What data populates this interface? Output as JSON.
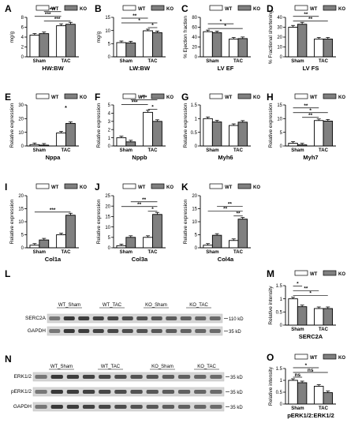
{
  "legend_labels": [
    "WT",
    "KO"
  ],
  "colors": {
    "wt": "#ffffff",
    "ko": "#808080",
    "stroke": "#000000"
  },
  "chart_data": [
    {
      "id": "A",
      "type": "bar",
      "categories": [
        "Sham",
        "TAC"
      ],
      "ylabel": "mg/g",
      "xlabel": "HW:BW",
      "yticks": [
        0,
        2,
        4,
        6,
        8
      ],
      "ylim": [
        0,
        8
      ],
      "series": [
        {
          "name": "WT",
          "values": [
            4.4,
            6.3
          ]
        },
        {
          "name": "KO",
          "values": [
            4.7,
            6.6
          ]
        }
      ],
      "annotations": [
        "***",
        "***",
        "***"
      ]
    },
    {
      "id": "B",
      "type": "bar",
      "categories": [
        "Sham",
        "TAC"
      ],
      "ylabel": "mg/g",
      "xlabel": "LW:BW",
      "yticks": [
        0,
        5,
        10,
        15
      ],
      "ylim": [
        0,
        15
      ],
      "series": [
        {
          "name": "WT",
          "values": [
            5.4,
            9.9
          ]
        },
        {
          "name": "KO",
          "values": [
            5.3,
            9.2
          ]
        }
      ],
      "annotations": [
        "*",
        "*",
        "**"
      ]
    },
    {
      "id": "C",
      "type": "bar",
      "categories": [
        "Sham",
        "TAC"
      ],
      "ylabel": "% Ejection fraction",
      "xlabel": "LV EF",
      "yticks": [
        0,
        20,
        40,
        60,
        80
      ],
      "ylim": [
        0,
        80
      ],
      "series": [
        {
          "name": "WT",
          "values": [
            51,
            36
          ]
        },
        {
          "name": "KO",
          "values": [
            49,
            37
          ]
        }
      ],
      "annotations": [
        "*",
        "*"
      ]
    },
    {
      "id": "D",
      "type": "bar",
      "categories": [
        "Sham",
        "TAC"
      ],
      "ylabel": "% Fractional shortening",
      "xlabel": "LV FS",
      "yticks": [
        0,
        10,
        20,
        30,
        40
      ],
      "ylim": [
        0,
        40
      ],
      "series": [
        {
          "name": "WT",
          "values": [
            30,
            18
          ]
        },
        {
          "name": "KO",
          "values": [
            33,
            18
          ]
        }
      ],
      "annotations": [
        "**",
        "**"
      ]
    },
    {
      "id": "E",
      "type": "bar",
      "categories": [
        "Sham",
        "TAC"
      ],
      "ylabel": "Relative expression",
      "xlabel": "Nppa",
      "yticks": [
        0,
        10,
        20,
        30
      ],
      "ylim": [
        0,
        30
      ],
      "series": [
        {
          "name": "WT",
          "values": [
            1.0,
            9.5
          ]
        },
        {
          "name": "KO",
          "values": [
            0.6,
            16.5
          ]
        }
      ],
      "annotations": [
        "*"
      ]
    },
    {
      "id": "F",
      "type": "bar",
      "categories": [
        "Sham",
        "TAC"
      ],
      "ylabel": "Relative expression",
      "xlabel": "Nppb",
      "yticks": [
        0,
        1,
        2,
        3,
        4,
        5
      ],
      "ylim": [
        0,
        5
      ],
      "series": [
        {
          "name": "WT",
          "values": [
            1.0,
            4.1
          ]
        },
        {
          "name": "KO",
          "values": [
            0.5,
            3.0
          ]
        }
      ],
      "annotations": [
        "*",
        "***",
        "***"
      ]
    },
    {
      "id": "G",
      "type": "bar",
      "categories": [
        "Sham",
        "TAC"
      ],
      "ylabel": "Relative expression",
      "xlabel": "Myh6",
      "yticks": [
        0.0,
        0.5,
        1.0,
        1.5
      ],
      "ylim": [
        0,
        1.5
      ],
      "series": [
        {
          "name": "WT",
          "values": [
            1.0,
            0.75
          ]
        },
        {
          "name": "KO",
          "values": [
            0.88,
            0.87
          ]
        }
      ],
      "annotations": []
    },
    {
      "id": "H",
      "type": "bar",
      "categories": [
        "Sham",
        "TAC"
      ],
      "ylabel": "Relative expression",
      "xlabel": "Myh7",
      "yticks": [
        0,
        5,
        10,
        15
      ],
      "ylim": [
        0,
        15
      ],
      "series": [
        {
          "name": "WT",
          "values": [
            1.0,
            9.3
          ]
        },
        {
          "name": "KO",
          "values": [
            0.4,
            9.1
          ]
        }
      ],
      "annotations": [
        "**",
        "*",
        "**"
      ]
    },
    {
      "id": "I",
      "type": "bar",
      "categories": [
        "Sham",
        "TAC"
      ],
      "ylabel": "Relative expression",
      "xlabel": "Col1a",
      "yticks": [
        0,
        5,
        10,
        15,
        20
      ],
      "ylim": [
        0,
        20
      ],
      "series": [
        {
          "name": "WT",
          "values": [
            1.0,
            5.0
          ]
        },
        {
          "name": "KO",
          "values": [
            3.0,
            12.5
          ]
        }
      ],
      "annotations": [
        "***"
      ]
    },
    {
      "id": "J",
      "type": "bar",
      "categories": [
        "Sham",
        "TAC"
      ],
      "ylabel": "Relative expression",
      "xlabel": "Col3a",
      "yticks": [
        0,
        5,
        10,
        15,
        20,
        25
      ],
      "ylim": [
        0,
        25
      ],
      "series": [
        {
          "name": "WT",
          "values": [
            1.0,
            5.0
          ]
        },
        {
          "name": "KO",
          "values": [
            5.0,
            16.0
          ]
        }
      ],
      "annotations": [
        "*",
        "**",
        "**"
      ]
    },
    {
      "id": "K",
      "type": "bar",
      "categories": [
        "Sham",
        "TAC"
      ],
      "ylabel": "Relative expression",
      "xlabel": "Col4a",
      "yticks": [
        0,
        5,
        10,
        15,
        20
      ],
      "ylim": [
        0,
        20
      ],
      "series": [
        {
          "name": "WT",
          "values": [
            1.0,
            2.8
          ]
        },
        {
          "name": "KO",
          "values": [
            4.8,
            11.0
          ]
        }
      ],
      "annotations": [
        "**",
        "**",
        "**"
      ]
    },
    {
      "id": "M",
      "type": "bar",
      "categories": [
        "Sham",
        "TAC"
      ],
      "ylabel": "Relative intensity",
      "xlabel": "SERC2A",
      "yticks": [
        0.0,
        0.5,
        1.0,
        1.5
      ],
      "ylim": [
        0,
        1.5
      ],
      "series": [
        {
          "name": "WT",
          "values": [
            1.0,
            0.63
          ]
        },
        {
          "name": "KO",
          "values": [
            0.7,
            0.63
          ]
        }
      ],
      "annotations": [
        "*",
        "**",
        "*"
      ]
    },
    {
      "id": "O",
      "type": "bar",
      "categories": [
        "Sham",
        "TAC"
      ],
      "ylabel": "Relative intensity",
      "xlabel": "pERK1/2:ERK1/2",
      "yticks": [
        0.0,
        0.5,
        1.0,
        1.5
      ],
      "ylim": [
        0,
        1.5
      ],
      "series": [
        {
          "name": "WT",
          "values": [
            1.0,
            0.75
          ]
        },
        {
          "name": "KO",
          "values": [
            0.9,
            0.48
          ]
        }
      ],
      "annotations": [
        "ns",
        "ns",
        "*"
      ]
    }
  ],
  "blots": [
    {
      "id": "L",
      "groups": [
        "WT_Sham",
        "WT_TAC",
        "KO_Sham",
        "KO_TAC"
      ],
      "rows": [
        {
          "name": "SERC2A",
          "marker": "110 kD"
        },
        {
          "name": "GAPDH",
          "marker": "35 kD"
        }
      ]
    },
    {
      "id": "N",
      "groups": [
        "WT_Sham",
        "WT_TAC",
        "KO_Sham",
        "KO_TAC"
      ],
      "rows": [
        {
          "name": "ERK1/2",
          "marker": "35 kD"
        },
        {
          "name": "pERK1/2",
          "marker": "35 kD"
        },
        {
          "name": "GAPDH",
          "marker": "35 kD"
        }
      ]
    }
  ]
}
